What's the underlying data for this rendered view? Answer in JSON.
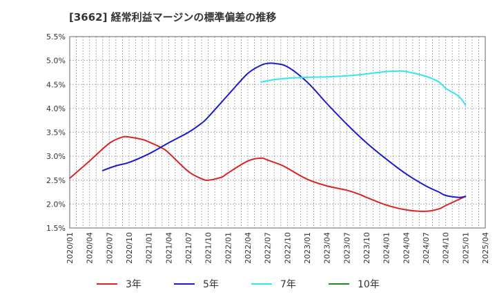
{
  "chart_data": {
    "type": "line",
    "title": "[3662]  経常利益マージンの標準偏差の推移",
    "xlabel": "",
    "ylabel": "",
    "ylim": [
      1.5,
      5.5
    ],
    "y_ticks": [
      "1.5%",
      "2.0%",
      "2.5%",
      "3.0%",
      "3.5%",
      "4.0%",
      "4.5%",
      "5.0%",
      "5.5%"
    ],
    "x_ticks": [
      "2020/01",
      "2020/04",
      "2020/07",
      "2020/10",
      "2021/01",
      "2021/04",
      "2021/07",
      "2021/10",
      "2022/01",
      "2022/04",
      "2022/07",
      "2022/10",
      "2023/01",
      "2023/04",
      "2023/07",
      "2023/10",
      "2024/01",
      "2024/04",
      "2024/07",
      "2024/10",
      "2025/01",
      "2025/04"
    ],
    "grid": true,
    "legend_position": "bottom",
    "colors": {
      "3年": "#dd2222",
      "5年": "#1a1acc",
      "7年": "#33e6ee",
      "10年": "#228822"
    },
    "series": [
      {
        "name": "3年",
        "points": [
          [
            "2020/01",
            2.54
          ],
          [
            "2020/04",
            2.9
          ],
          [
            "2020/07",
            3.27
          ],
          [
            "2020/09",
            3.4
          ],
          [
            "2020/10",
            3.4
          ],
          [
            "2020/12",
            3.35
          ],
          [
            "2021/01",
            3.3
          ],
          [
            "2021/03",
            3.17
          ],
          [
            "2021/04",
            3.07
          ],
          [
            "2021/07",
            2.68
          ],
          [
            "2021/09",
            2.53
          ],
          [
            "2021/10",
            2.5
          ],
          [
            "2021/12",
            2.56
          ],
          [
            "2022/01",
            2.65
          ],
          [
            "2022/04",
            2.9
          ],
          [
            "2022/06",
            2.96
          ],
          [
            "2022/07",
            2.92
          ],
          [
            "2022/09",
            2.82
          ],
          [
            "2022/10",
            2.75
          ],
          [
            "2023/01",
            2.52
          ],
          [
            "2023/04",
            2.38
          ],
          [
            "2023/07",
            2.29
          ],
          [
            "2023/09",
            2.2
          ],
          [
            "2023/10",
            2.14
          ],
          [
            "2024/01",
            1.98
          ],
          [
            "2024/04",
            1.88
          ],
          [
            "2024/07",
            1.85
          ],
          [
            "2024/09",
            1.9
          ],
          [
            "2024/10",
            1.97
          ],
          [
            "2025/01",
            2.16
          ]
        ]
      },
      {
        "name": "5年",
        "points": [
          [
            "2020/06",
            2.7
          ],
          [
            "2020/08",
            2.8
          ],
          [
            "2020/10",
            2.87
          ],
          [
            "2021/01",
            3.05
          ],
          [
            "2021/04",
            3.28
          ],
          [
            "2021/07",
            3.5
          ],
          [
            "2021/09",
            3.69
          ],
          [
            "2021/10",
            3.82
          ],
          [
            "2022/01",
            4.28
          ],
          [
            "2022/04",
            4.73
          ],
          [
            "2022/06",
            4.9
          ],
          [
            "2022/07",
            4.94
          ],
          [
            "2022/08",
            4.94
          ],
          [
            "2022/10",
            4.87
          ],
          [
            "2023/01",
            4.55
          ],
          [
            "2023/04",
            4.1
          ],
          [
            "2023/07",
            3.67
          ],
          [
            "2023/10",
            3.28
          ],
          [
            "2024/01",
            2.94
          ],
          [
            "2024/04",
            2.63
          ],
          [
            "2024/07",
            2.38
          ],
          [
            "2024/09",
            2.25
          ],
          [
            "2024/10",
            2.18
          ],
          [
            "2024/12",
            2.14
          ],
          [
            "2025/01",
            2.16
          ]
        ]
      },
      {
        "name": "7年",
        "points": [
          [
            "2022/06",
            4.55
          ],
          [
            "2022/08",
            4.6
          ],
          [
            "2022/10",
            4.63
          ],
          [
            "2023/01",
            4.65
          ],
          [
            "2023/04",
            4.66
          ],
          [
            "2023/07",
            4.68
          ],
          [
            "2023/10",
            4.72
          ],
          [
            "2024/01",
            4.77
          ],
          [
            "2024/03",
            4.78
          ],
          [
            "2024/04",
            4.77
          ],
          [
            "2024/07",
            4.67
          ],
          [
            "2024/09",
            4.55
          ],
          [
            "2024/10",
            4.42
          ],
          [
            "2024/12",
            4.25
          ],
          [
            "2025/01",
            4.07
          ]
        ]
      },
      {
        "name": "10年",
        "points": []
      }
    ]
  }
}
